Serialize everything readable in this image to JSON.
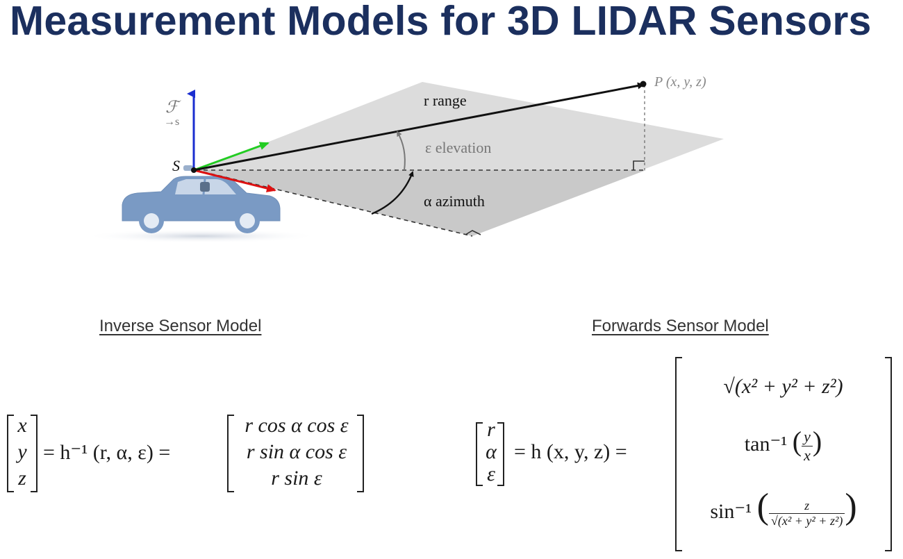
{
  "title": "Measurement Models for 3D LIDAR Sensors",
  "diagram": {
    "frame_label": "ℱ",
    "frame_subscript": "→s",
    "sensor_label": "S",
    "point_label": "P (x, y, z)",
    "range_label": "r  range",
    "elevation_label": "ε  elevation",
    "azimuth_label": "α  azimuth"
  },
  "inverse": {
    "heading": "Inverse Sensor Model",
    "vec": [
      "x",
      "y",
      "z"
    ],
    "mid": "= h⁻¹ (r, α, ε) =",
    "rhs": [
      "r cos α cos ε",
      "r sin α cos ε",
      "r sin ε"
    ]
  },
  "forward": {
    "heading": "Forwards Sensor Model",
    "vec": [
      "r",
      "α",
      "ε"
    ],
    "mid": "= h (x, y, z) =",
    "row1": "√(x² + y² + z²)",
    "row2_fn": "tan⁻¹",
    "row2_num": "y",
    "row2_den": "x",
    "row3_fn": "sin⁻¹",
    "row3_num": "z",
    "row3_den": "√(x² + y² + z²)"
  }
}
